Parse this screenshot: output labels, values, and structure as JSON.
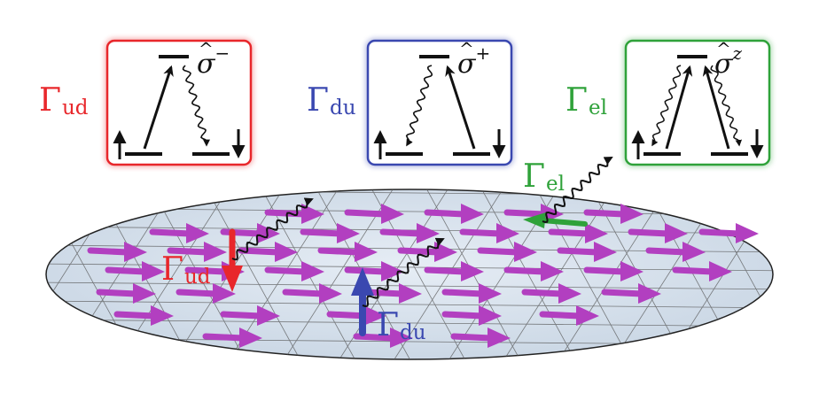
{
  "colors": {
    "ud": "#e8272b",
    "du": "#3a48b0",
    "el": "#2fa23a",
    "spin": "#b23fc0",
    "disk": "#d8e2ee"
  },
  "panels": [
    {
      "id": "ud",
      "label_main": "Γ",
      "label_sub": "ud",
      "operator": "σ",
      "operator_sup": "−"
    },
    {
      "id": "du",
      "label_main": "Γ",
      "label_sub": "du",
      "operator": "σ",
      "operator_sup": "+"
    },
    {
      "id": "el",
      "label_main": "Γ",
      "label_sub": "el",
      "operator": "σ",
      "operator_sup": "z"
    }
  ],
  "disk_labels": {
    "ud": {
      "main": "Γ",
      "sub": "ud"
    },
    "du": {
      "main": "Γ",
      "sub": "du"
    },
    "el": {
      "main": "Γ",
      "sub": "el"
    }
  }
}
